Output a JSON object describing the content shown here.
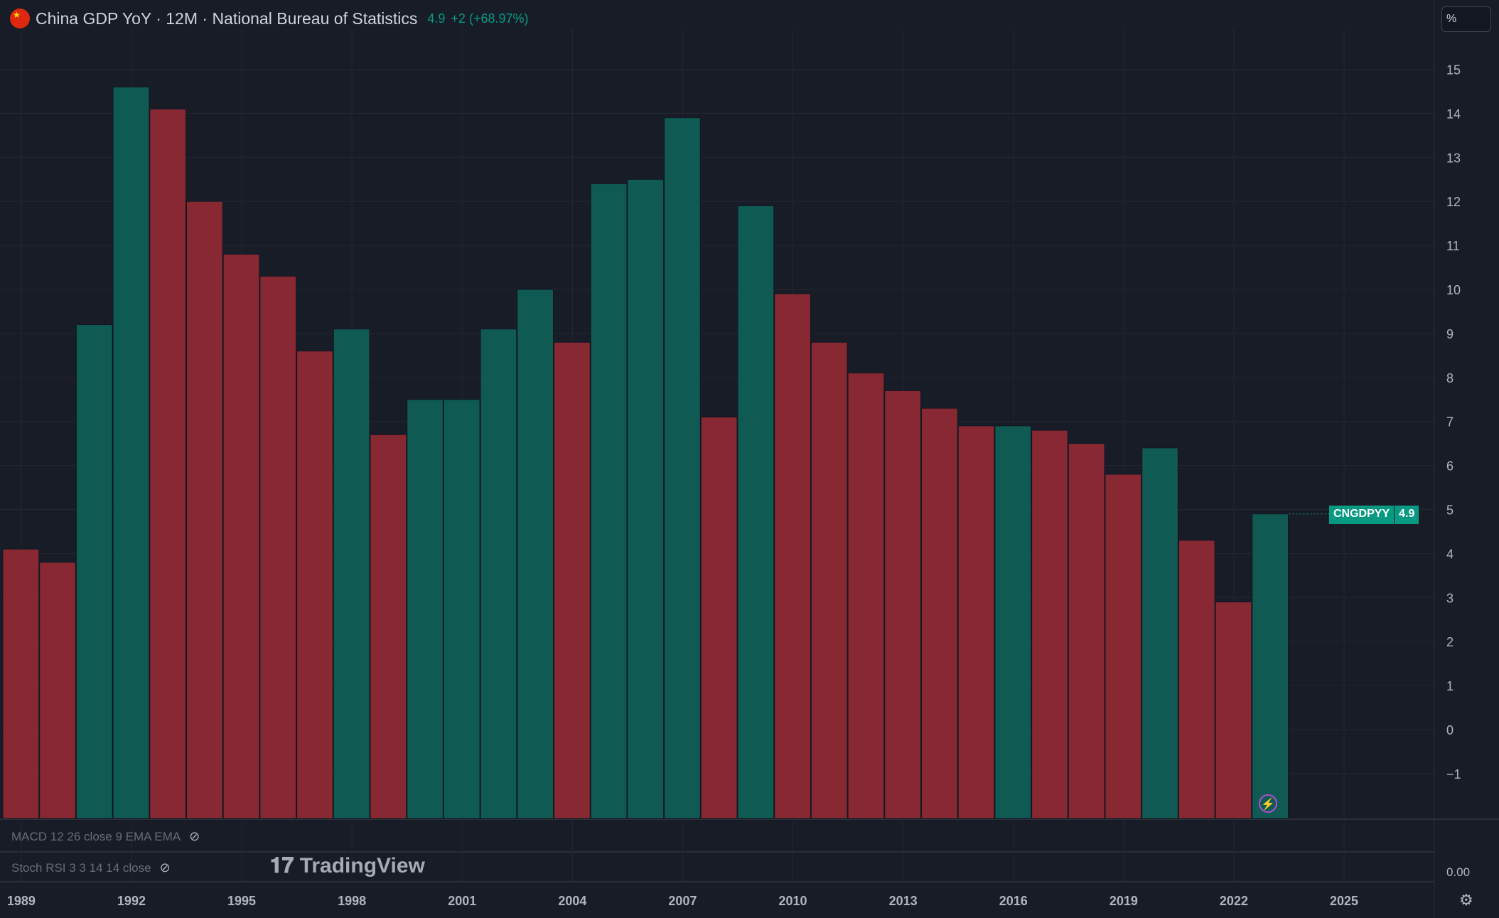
{
  "header": {
    "title": "China GDP YoY · 12M · National Bureau of Statistics",
    "last": "4.9",
    "change": "+2 (+68.97%)"
  },
  "unit_label": "%",
  "price_tag": {
    "symbol": "CNGDPYY",
    "value": "4.9"
  },
  "panes": {
    "macd": "MACD 12 26 close 9 EMA EMA",
    "stoch": "Stoch RSI 3 3 14 14 close",
    "stoch_axis": "0.00"
  },
  "logo": "TradingView",
  "colors": {
    "up": "#0f5a52",
    "down": "#882832",
    "accent": "#089981",
    "bg": "#181c27",
    "grid": "#242733"
  },
  "chart_data": {
    "type": "bar",
    "title": "China GDP YoY",
    "categories": [
      1989,
      1990,
      1991,
      1992,
      1993,
      1994,
      1995,
      1996,
      1997,
      1998,
      1999,
      2000,
      2001,
      2002,
      2003,
      2004,
      2005,
      2006,
      2007,
      2008,
      2009,
      2010,
      2011,
      2012,
      2013,
      2014,
      2015,
      2016,
      2017,
      2018,
      2019,
      2020,
      2021,
      2022,
      2023
    ],
    "values": [
      4.1,
      3.8,
      9.2,
      14.6,
      14.1,
      12.0,
      10.8,
      10.3,
      8.6,
      9.1,
      6.7,
      7.5,
      7.5,
      9.1,
      10.0,
      8.8,
      12.4,
      12.5,
      13.9,
      7.1,
      11.9,
      9.9,
      8.8,
      8.1,
      7.7,
      7.3,
      6.9,
      6.9,
      6.8,
      6.5,
      5.8,
      6.4,
      4.3,
      2.9,
      4.9
    ],
    "xticks": [
      "1989",
      "1992",
      "1995",
      "1998",
      "2001",
      "2004",
      "2007",
      "2010",
      "2013",
      "2016",
      "2019",
      "2022",
      "2025"
    ],
    "yticks": [
      "15",
      "14",
      "13",
      "12",
      "11",
      "10",
      "9",
      "8",
      "7",
      "6",
      "5",
      "4",
      "3",
      "2",
      "1",
      "0",
      "−1"
    ],
    "ylim": [
      -2.7,
      16.3
    ],
    "grid": true
  }
}
